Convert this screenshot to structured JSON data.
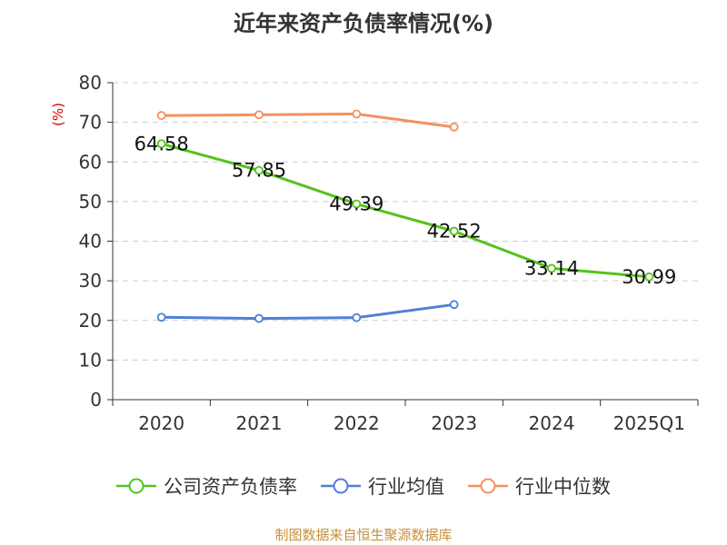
{
  "chart_data": {
    "type": "line",
    "title": "近年来资产负债率情况(%)",
    "ylabel": "(%)",
    "xlabel": "",
    "categories": [
      "2020",
      "2021",
      "2022",
      "2023",
      "2024",
      "2025Q1"
    ],
    "ylim": [
      0,
      80
    ],
    "yticks": [
      0,
      10,
      20,
      30,
      40,
      50,
      60,
      70,
      80
    ],
    "grid": true,
    "legend_position": "bottom",
    "series": [
      {
        "name": "公司资产负债率",
        "color": "#52c41a",
        "values": [
          64.58,
          57.85,
          49.39,
          42.52,
          33.14,
          30.99
        ],
        "labels": [
          "64.58",
          "57.85",
          "49.39",
          "42.52",
          "33.14",
          "30.99"
        ]
      },
      {
        "name": "行业均值",
        "color": "#4f7fd8",
        "values": [
          20.8,
          20.5,
          20.7,
          24.0,
          null,
          null
        ]
      },
      {
        "name": "行业中位数",
        "color": "#f5905e",
        "values": [
          71.7,
          71.9,
          72.1,
          68.8,
          null,
          null
        ]
      }
    ],
    "source": "制图数据来自恒生聚源数据库"
  }
}
